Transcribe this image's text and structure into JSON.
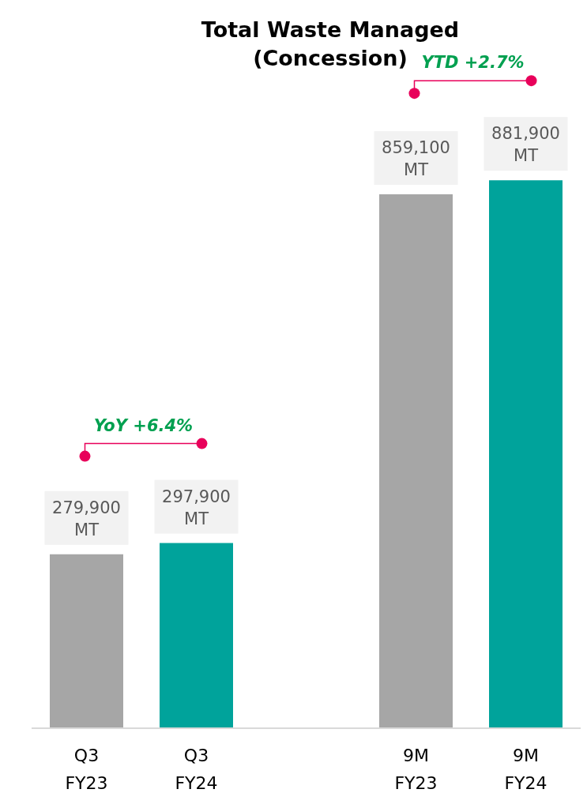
{
  "chart_data": {
    "type": "bar",
    "title": "Total Waste Managed (Concession)",
    "categories": [
      "Q3 FY23",
      "Q3 FY24",
      null,
      "9M FY23",
      "9M FY24"
    ],
    "values": [
      279900,
      297900,
      null,
      859100,
      881900
    ],
    "colors": [
      "#a6a6a6",
      "#00a39b",
      "#ffffff",
      "#a6a6a6",
      "#00a39b"
    ],
    "value_labels": [
      "279,900 MT",
      "297,900 MT",
      null,
      "859,100 MT",
      "881,900 MT"
    ],
    "annotations": [
      "YoY +6.4%",
      "YTD +2.7%"
    ]
  }
}
